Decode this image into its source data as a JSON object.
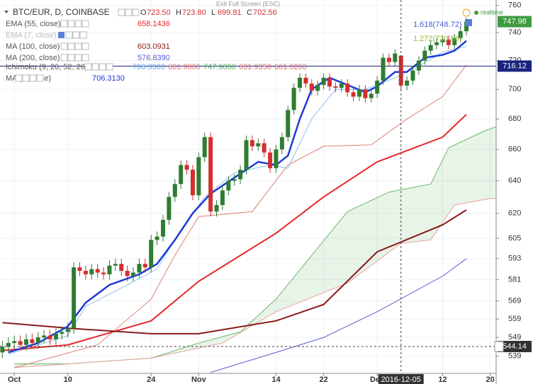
{
  "chart_data": {
    "type": "candlestick",
    "title": "BTC/EUR, D, COINBASE",
    "ohlc_legend": [
      {
        "label": "O",
        "value": "723.50"
      },
      {
        "label": "H",
        "value": "723.80"
      },
      {
        "label": "L",
        "value": "699.81"
      },
      {
        "label": "C",
        "value": "702.56"
      }
    ],
    "exit_label": "Exit Full Screen (ESC)",
    "status": "realtime",
    "log": true,
    "grid": true,
    "up_color": "#2e7d32",
    "down_color": "#d32f2f",
    "ylim": [
      530,
      764
    ],
    "yticks": [
      539,
      549,
      559,
      569,
      581,
      593,
      605,
      620,
      640,
      660,
      680,
      700,
      720,
      740,
      760
    ],
    "xlim": [
      "2016-09-28",
      "2016-12-21"
    ],
    "xticks": [
      {
        "value": "2016-10-01",
        "label": "Oct"
      },
      {
        "value": "2016-10-10",
        "label": "10"
      },
      {
        "value": "2016-10-24",
        "label": "24"
      },
      {
        "value": "2016-11-01",
        "label": "Nov"
      },
      {
        "value": "2016-11-14",
        "label": "14"
      },
      {
        "value": "2016-11-22",
        "label": "22"
      },
      {
        "value": "2016-12-01",
        "label": "Dec"
      },
      {
        "value": "2016-12-12",
        "label": "12"
      },
      {
        "value": "2016-12-20",
        "label": "20"
      }
    ],
    "x": [
      "2016-09-29",
      "2016-09-30",
      "2016-10-01",
      "2016-10-02",
      "2016-10-03",
      "2016-10-04",
      "2016-10-05",
      "2016-10-06",
      "2016-10-07",
      "2016-10-08",
      "2016-10-09",
      "2016-10-10",
      "2016-10-11",
      "2016-10-12",
      "2016-10-13",
      "2016-10-14",
      "2016-10-15",
      "2016-10-16",
      "2016-10-17",
      "2016-10-18",
      "2016-10-19",
      "2016-10-20",
      "2016-10-21",
      "2016-10-22",
      "2016-10-23",
      "2016-10-24",
      "2016-10-25",
      "2016-10-26",
      "2016-10-27",
      "2016-10-28",
      "2016-10-29",
      "2016-10-30",
      "2016-10-31",
      "2016-11-01",
      "2016-11-02",
      "2016-11-03",
      "2016-11-04",
      "2016-11-05",
      "2016-11-06",
      "2016-11-07",
      "2016-11-08",
      "2016-11-09",
      "2016-11-10",
      "2016-11-11",
      "2016-11-12",
      "2016-11-13",
      "2016-11-14",
      "2016-11-15",
      "2016-11-16",
      "2016-11-17",
      "2016-11-18",
      "2016-11-19",
      "2016-11-20",
      "2016-11-21",
      "2016-11-22",
      "2016-11-23",
      "2016-11-24",
      "2016-11-25",
      "2016-11-26",
      "2016-11-27",
      "2016-11-28",
      "2016-11-29",
      "2016-11-30",
      "2016-12-01",
      "2016-12-02",
      "2016-12-03",
      "2016-12-04",
      "2016-12-05",
      "2016-12-06",
      "2016-12-07",
      "2016-12-08",
      "2016-12-09",
      "2016-12-10",
      "2016-12-11",
      "2016-12-12",
      "2016-12-13",
      "2016-12-14",
      "2016-12-15",
      "2016-12-16"
    ],
    "open": [
      541,
      544,
      546,
      547,
      545,
      548,
      546,
      549,
      550,
      548,
      551,
      552,
      554,
      588,
      586,
      584,
      587,
      585,
      584,
      589,
      590,
      586,
      583,
      585,
      590,
      588,
      604,
      606,
      616,
      630,
      638,
      650,
      647,
      631,
      655,
      668,
      621,
      625,
      634,
      640,
      641,
      647,
      666,
      662,
      664,
      658,
      648,
      660,
      668,
      686,
      701,
      708,
      704,
      699,
      703,
      708,
      702,
      701,
      704,
      698,
      695,
      700,
      694,
      697,
      706,
      722,
      719,
      723.5,
      702.56,
      706,
      713,
      720,
      727,
      731,
      733,
      735,
      731,
      736,
      741
    ],
    "high": [
      547,
      549,
      550,
      550,
      551,
      551,
      552,
      553,
      553,
      554,
      555,
      557,
      591,
      591,
      589,
      590,
      590,
      588,
      592,
      593,
      593,
      589,
      588,
      593,
      593,
      607,
      609,
      619,
      633,
      641,
      653,
      653,
      650,
      658,
      671,
      671,
      628,
      637,
      643,
      644,
      650,
      669,
      669,
      667,
      667,
      661,
      663,
      671,
      689,
      704,
      711,
      711,
      707,
      706,
      711,
      711,
      705,
      707,
      707,
      701,
      703,
      703,
      700,
      709,
      725,
      725,
      728,
      723.8,
      709,
      716,
      723,
      730,
      734,
      736,
      738,
      738,
      739,
      744,
      751
    ],
    "low": [
      538,
      541,
      543,
      542,
      542,
      543,
      543,
      546,
      545,
      545,
      548,
      549,
      551,
      583,
      581,
      581,
      582,
      581,
      581,
      586,
      583,
      580,
      580,
      582,
      585,
      585,
      601,
      603,
      613,
      627,
      635,
      644,
      628,
      628,
      652,
      618,
      618,
      622,
      631,
      637,
      638,
      644,
      659,
      659,
      655,
      645,
      645,
      657,
      665,
      683,
      698,
      701,
      696,
      696,
      700,
      699,
      698,
      698,
      695,
      692,
      692,
      691,
      691,
      694,
      703,
      716,
      716,
      699.81,
      699.5,
      703,
      710,
      717,
      724,
      728,
      730,
      728,
      728,
      733,
      738
    ],
    "close": [
      544,
      546,
      547,
      545,
      548,
      546,
      549,
      550,
      548,
      551,
      552,
      554,
      588,
      586,
      584,
      587,
      585,
      584,
      589,
      590,
      586,
      583,
      585,
      590,
      588,
      604,
      606,
      616,
      630,
      638,
      650,
      647,
      631,
      655,
      668,
      621,
      625,
      634,
      640,
      641,
      647,
      666,
      662,
      664,
      658,
      648,
      660,
      668,
      686,
      701,
      708,
      704,
      699,
      703,
      708,
      702,
      701,
      704,
      698,
      695,
      700,
      694,
      697,
      706,
      722,
      719,
      725,
      702.56,
      706,
      713,
      720,
      727,
      731,
      733,
      735,
      731,
      736,
      741,
      747.98
    ],
    "series": [
      {
        "name": "EMA (55, close)",
        "value_label": "658.1436",
        "color": "#e8262a",
        "width": 2,
        "x": [
          "2016-09-29",
          "2016-10-10",
          "2016-10-24",
          "2016-11-01",
          "2016-11-14",
          "2016-11-22",
          "2016-12-01",
          "2016-12-12",
          "2016-12-16"
        ],
        "values": [
          542,
          545,
          558,
          580,
          608,
          630,
          652,
          668,
          683
        ]
      },
      {
        "name": "EMA (7, close)",
        "hidden": true,
        "color": "#bbbbbb"
      },
      {
        "name": "MA (100, close)",
        "value_label": "603.0931",
        "color": "#8b1a1a",
        "width": 2,
        "x": [
          "2016-09-29",
          "2016-10-10",
          "2016-10-24",
          "2016-11-01",
          "2016-11-14",
          "2016-11-22",
          "2016-12-01",
          "2016-12-12",
          "2016-12-16"
        ],
        "values": [
          557,
          554,
          551,
          551,
          558,
          567,
          597,
          613,
          622
        ]
      },
      {
        "name": "MA (200, close)",
        "value_label": "576.8390",
        "color": "#5a5ad6",
        "width": 1,
        "x": [
          "2016-11-03",
          "2016-11-14",
          "2016-11-22",
          "2016-12-01",
          "2016-12-12",
          "2016-12-16"
        ],
        "values": [
          530.5,
          541,
          549,
          563,
          583,
          593
        ]
      },
      {
        "name": "MA (5, close)",
        "value_label": "706.3130",
        "color": "#1c3ad6",
        "width": 2.5,
        "x": [
          "2016-09-30",
          "2016-10-05",
          "2016-10-10",
          "2016-10-13",
          "2016-10-17",
          "2016-10-22",
          "2016-10-25",
          "2016-10-28",
          "2016-10-31",
          "2016-11-03",
          "2016-11-07",
          "2016-11-11",
          "2016-11-14",
          "2016-11-16",
          "2016-11-18",
          "2016-11-20",
          "2016-11-23",
          "2016-11-26",
          "2016-11-29",
          "2016-12-01",
          "2016-12-04",
          "2016-12-06",
          "2016-12-09",
          "2016-12-12",
          "2016-12-14",
          "2016-12-16"
        ],
        "values": [
          541,
          546,
          555,
          568,
          578,
          584,
          590,
          604,
          620,
          632,
          642,
          652,
          650,
          656,
          680,
          700,
          708,
          703,
          698,
          702,
          712,
          712,
          722,
          724,
          727,
          734
        ]
      }
    ],
    "ichimoku": {
      "name": "Ichimoku (9, 26, 52, 26)",
      "value_labels": [
        {
          "text": "706.3300",
          "color": "#6aa8e8"
        },
        {
          "text": "681.9800",
          "color": "#e07a7a"
        },
        {
          "text": "747.9800",
          "color": "#5fae5f"
        },
        {
          "text": "631.9350",
          "color": "#d77070"
        },
        {
          "text": "601.0200",
          "color": "#d77070"
        }
      ],
      "conversion": {
        "color": "#90c0ee",
        "x": [
          "2016-09-30",
          "2016-10-10",
          "2016-10-13",
          "2016-10-20",
          "2016-10-25",
          "2016-10-29",
          "2016-11-02",
          "2016-11-07",
          "2016-11-13",
          "2016-11-16",
          "2016-11-20",
          "2016-11-24",
          "2016-11-29",
          "2016-12-04",
          "2016-12-08",
          "2016-12-12",
          "2016-12-16"
        ],
        "values": [
          540,
          550,
          566,
          578,
          587,
          610,
          630,
          645,
          650,
          648,
          680,
          700,
          700,
          708,
          716,
          726,
          730
        ]
      },
      "base": {
        "color": "#d9826e",
        "x": [
          "2016-10-01",
          "2016-10-15",
          "2016-10-24",
          "2016-10-28",
          "2016-11-01",
          "2016-11-10",
          "2016-11-16",
          "2016-11-22",
          "2016-11-30",
          "2016-12-06",
          "2016-12-12",
          "2016-12-16"
        ],
        "values": [
          533,
          545,
          570,
          595,
          618,
          621,
          650,
          662,
          663,
          680,
          695,
          717
        ]
      },
      "span_a": {
        "color": "#6bb86b",
        "x": [
          "2016-10-01",
          "2016-10-10",
          "2016-10-24",
          "2016-11-01",
          "2016-11-08",
          "2016-11-14",
          "2016-11-20",
          "2016-11-26",
          "2016-12-03",
          "2016-12-10",
          "2016-12-13",
          "2016-12-19",
          "2016-12-26"
        ],
        "values": [
          535,
          535,
          538,
          546,
          552,
          570,
          595,
          621,
          633,
          638,
          661,
          672,
          682
        ]
      },
      "span_b": {
        "color": "#e8a3a3",
        "x": [
          "2016-10-01",
          "2016-10-24",
          "2016-11-05",
          "2016-11-14",
          "2016-11-26",
          "2016-12-05",
          "2016-12-10",
          "2016-12-14",
          "2016-12-20",
          "2016-12-26"
        ],
        "values": [
          533,
          538,
          546,
          563,
          579,
          602,
          604,
          625,
          629,
          630
        ]
      }
    },
    "fib_labels": [
      {
        "text": "1.618(748.72)",
        "color": "#4a5ad8"
      },
      {
        "text": "1.272(730.56)",
        "color": "#9ab83a"
      }
    ],
    "last_price": 747.98,
    "price_line": 716.12,
    "crosshair": {
      "x": "2016-12-05",
      "y": 544.14
    }
  }
}
